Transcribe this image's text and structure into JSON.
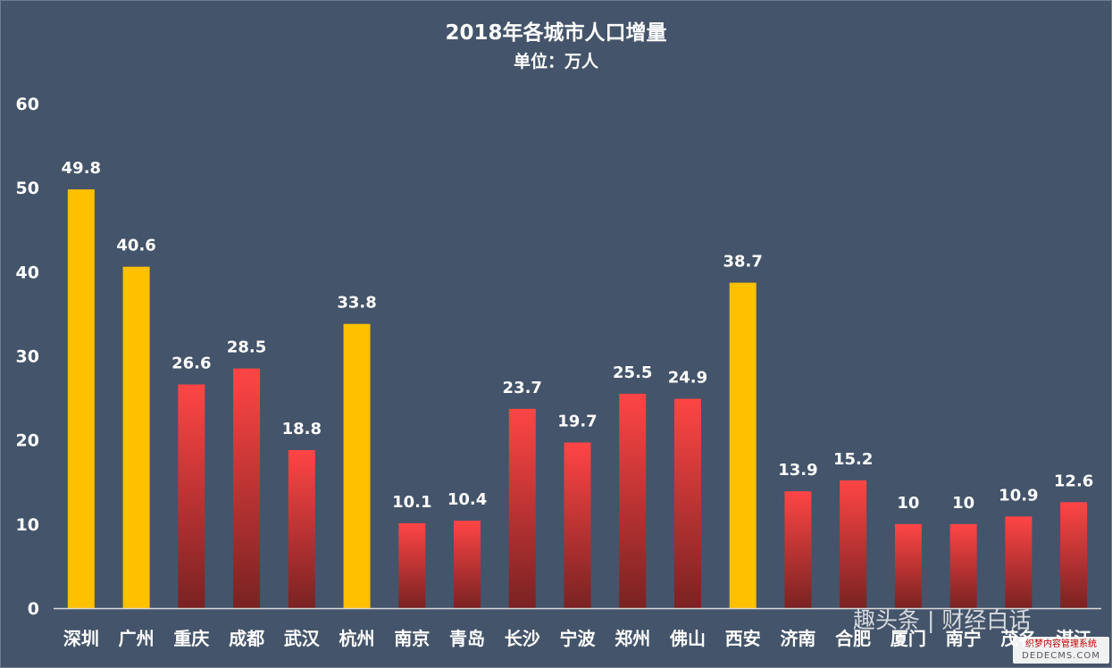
{
  "chart_data": {
    "type": "bar",
    "title": "2018年各城市人口增量",
    "subtitle": "单位：万人",
    "categories": [
      "深圳",
      "广州",
      "重庆",
      "成都",
      "武汉",
      "杭州",
      "南京",
      "青岛",
      "长沙",
      "宁波",
      "郑州",
      "佛山",
      "西安",
      "济南",
      "合肥",
      "厦门",
      "南宁",
      "茂名",
      "湛江"
    ],
    "values": [
      49.8,
      40.6,
      26.6,
      28.5,
      18.8,
      33.8,
      10.1,
      10.4,
      23.7,
      19.7,
      25.5,
      24.9,
      38.7,
      13.9,
      15.2,
      10,
      10,
      10.9,
      12.6
    ],
    "data_labels": [
      "49.8",
      "40.6",
      "26.6",
      "28.5",
      "18.8",
      "33.8",
      "10.1",
      "10.4",
      "23.7",
      "19.7",
      "25.5",
      "24.9",
      "38.7",
      "13.9",
      "15.2",
      "10",
      "10",
      "10.9",
      "12.6"
    ],
    "highlighted": [
      true,
      true,
      false,
      false,
      false,
      true,
      false,
      false,
      false,
      false,
      false,
      false,
      true,
      false,
      false,
      false,
      false,
      false,
      false
    ],
    "ylim": [
      0,
      60
    ],
    "yticks": [
      "0",
      "10",
      "20",
      "30",
      "40",
      "50",
      "60"
    ],
    "xlabel": "",
    "ylabel": "",
    "grid": false,
    "legend": "none",
    "colors": {
      "background": "#44546a",
      "highlight_bar": "#ffc000",
      "bar_top": "#ff4545",
      "bar_bottom": "#7a2222",
      "text": "#ffffff"
    }
  },
  "watermark": "趣头条 | 财经白话",
  "site_badge": {
    "line1": "织梦内容管理系统",
    "line2": "DEDECMS.COM"
  }
}
